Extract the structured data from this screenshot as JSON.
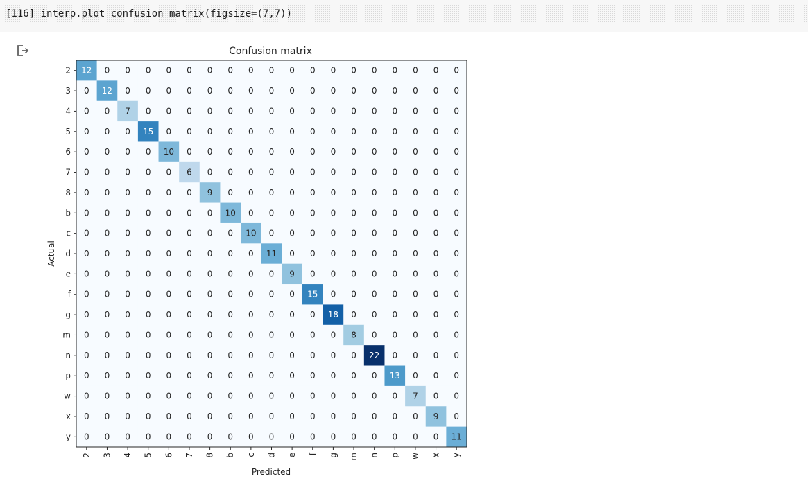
{
  "cell": {
    "prompt": "[116]",
    "code": "interp.plot_confusion_matrix(figsize=(7,7))"
  },
  "output": {
    "icon": "output-redirect-icon"
  },
  "colors": {
    "accent_dark": "#08306b",
    "cmap": "Blues"
  },
  "chart_data": {
    "type": "heatmap",
    "title": "Confusion matrix",
    "xlabel": "Predicted",
    "ylabel": "Actual",
    "classes": [
      "2",
      "3",
      "4",
      "5",
      "6",
      "7",
      "8",
      "b",
      "c",
      "d",
      "e",
      "f",
      "g",
      "m",
      "n",
      "p",
      "w",
      "x",
      "y"
    ],
    "diagonal": [
      12,
      12,
      7,
      15,
      10,
      6,
      9,
      10,
      10,
      11,
      9,
      15,
      18,
      8,
      22,
      13,
      7,
      9,
      11
    ],
    "off_diagonal_value": 0,
    "vmin": 0,
    "vmax": 22,
    "grid": false,
    "colorbar": false
  }
}
